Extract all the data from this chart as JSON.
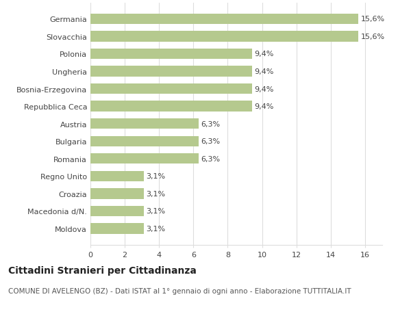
{
  "categories": [
    "Germania",
    "Slovacchia",
    "Polonia",
    "Ungheria",
    "Bosnia-Erzegovina",
    "Repubblica Ceca",
    "Austria",
    "Bulgaria",
    "Romania",
    "Regno Unito",
    "Croazia",
    "Macedonia d/N.",
    "Moldova"
  ],
  "values": [
    15.6,
    15.6,
    9.4,
    9.4,
    9.4,
    9.4,
    6.3,
    6.3,
    6.3,
    3.1,
    3.1,
    3.1,
    3.1
  ],
  "labels": [
    "15,6%",
    "15,6%",
    "9,4%",
    "9,4%",
    "9,4%",
    "9,4%",
    "6,3%",
    "6,3%",
    "6,3%",
    "3,1%",
    "3,1%",
    "3,1%",
    "3,1%"
  ],
  "bar_color": "#b5c98e",
  "background_color": "#ffffff",
  "title_bold": "Cittadini Stranieri per Cittadinanza",
  "subtitle": "COMUNE DI AVELENGO (BZ) - Dati ISTAT al 1° gennaio di ogni anno - Elaborazione TUTTITALIA.IT",
  "xlim": [
    0,
    17
  ],
  "xticks": [
    0,
    2,
    4,
    6,
    8,
    10,
    12,
    14,
    16
  ],
  "grid_color": "#dddddd",
  "label_fontsize": 8,
  "tick_fontsize": 8,
  "title_fontsize": 10,
  "subtitle_fontsize": 7.5
}
